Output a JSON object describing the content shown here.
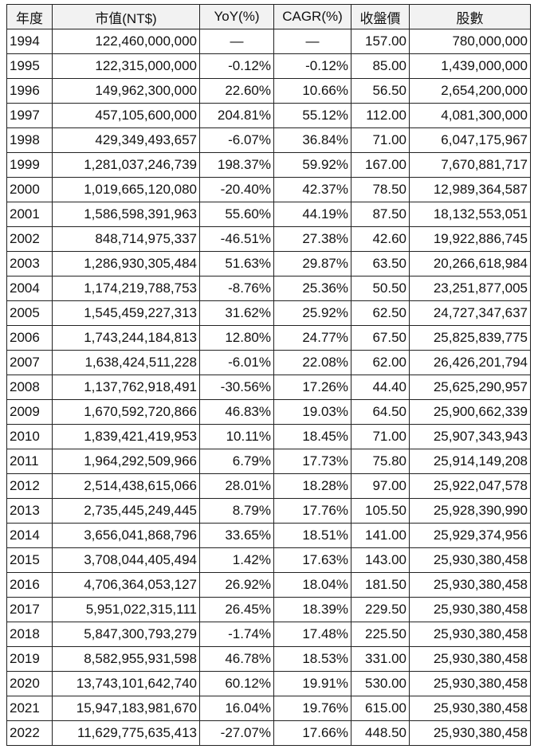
{
  "table": {
    "header": [
      "年度",
      "市值(NT$)",
      "YoY(%)",
      "CAGR(%)",
      "收盤價",
      "股數"
    ],
    "rows": [
      [
        "1994",
        "122,460,000,000",
        "—",
        "—",
        "157.00",
        "780,000,000"
      ],
      [
        "1995",
        "122,315,000,000",
        "-0.12%",
        "-0.12%",
        "85.00",
        "1,439,000,000"
      ],
      [
        "1996",
        "149,962,300,000",
        "22.60%",
        "10.66%",
        "56.50",
        "2,654,200,000"
      ],
      [
        "1997",
        "457,105,600,000",
        "204.81%",
        "55.12%",
        "112.00",
        "4,081,300,000"
      ],
      [
        "1998",
        "429,349,493,657",
        "-6.07%",
        "36.84%",
        "71.00",
        "6,047,175,967"
      ],
      [
        "1999",
        "1,281,037,246,739",
        "198.37%",
        "59.92%",
        "167.00",
        "7,670,881,717"
      ],
      [
        "2000",
        "1,019,665,120,080",
        "-20.40%",
        "42.37%",
        "78.50",
        "12,989,364,587"
      ],
      [
        "2001",
        "1,586,598,391,963",
        "55.60%",
        "44.19%",
        "87.50",
        "18,132,553,051"
      ],
      [
        "2002",
        "848,714,975,337",
        "-46.51%",
        "27.38%",
        "42.60",
        "19,922,886,745"
      ],
      [
        "2003",
        "1,286,930,305,484",
        "51.63%",
        "29.87%",
        "63.50",
        "20,266,618,984"
      ],
      [
        "2004",
        "1,174,219,788,753",
        "-8.76%",
        "25.36%",
        "50.50",
        "23,251,877,005"
      ],
      [
        "2005",
        "1,545,459,227,313",
        "31.62%",
        "25.92%",
        "62.50",
        "24,727,347,637"
      ],
      [
        "2006",
        "1,743,244,184,813",
        "12.80%",
        "24.77%",
        "67.50",
        "25,825,839,775"
      ],
      [
        "2007",
        "1,638,424,511,228",
        "-6.01%",
        "22.08%",
        "62.00",
        "26,426,201,794"
      ],
      [
        "2008",
        "1,137,762,918,491",
        "-30.56%",
        "17.26%",
        "44.40",
        "25,625,290,957"
      ],
      [
        "2009",
        "1,670,592,720,866",
        "46.83%",
        "19.03%",
        "64.50",
        "25,900,662,339"
      ],
      [
        "2010",
        "1,839,421,419,953",
        "10.11%",
        "18.45%",
        "71.00",
        "25,907,343,943"
      ],
      [
        "2011",
        "1,964,292,509,966",
        "6.79%",
        "17.73%",
        "75.80",
        "25,914,149,208"
      ],
      [
        "2012",
        "2,514,438,615,066",
        "28.01%",
        "18.28%",
        "97.00",
        "25,922,047,578"
      ],
      [
        "2013",
        "2,735,445,249,445",
        "8.79%",
        "17.76%",
        "105.50",
        "25,928,390,990"
      ],
      [
        "2014",
        "3,656,041,868,796",
        "33.65%",
        "18.51%",
        "141.00",
        "25,929,374,956"
      ],
      [
        "2015",
        "3,708,044,405,494",
        "1.42%",
        "17.63%",
        "143.00",
        "25,930,380,458"
      ],
      [
        "2016",
        "4,706,364,053,127",
        "26.92%",
        "18.04%",
        "181.50",
        "25,930,380,458"
      ],
      [
        "2017",
        "5,951,022,315,111",
        "26.45%",
        "18.39%",
        "229.50",
        "25,930,380,458"
      ],
      [
        "2018",
        "5,847,300,793,279",
        "-1.74%",
        "17.48%",
        "225.50",
        "25,930,380,458"
      ],
      [
        "2019",
        "8,582,955,931,598",
        "46.78%",
        "18.53%",
        "331.00",
        "25,930,380,458"
      ],
      [
        "2020",
        "13,743,101,642,740",
        "60.12%",
        "19.91%",
        "530.00",
        "25,930,380,458"
      ],
      [
        "2021",
        "15,947,183,981,670",
        "16.04%",
        "19.76%",
        "615.00",
        "25,930,380,458"
      ],
      [
        "2022",
        "11,629,775,635,413",
        "-27.07%",
        "17.66%",
        "448.50",
        "25,930,380,458"
      ]
    ]
  }
}
